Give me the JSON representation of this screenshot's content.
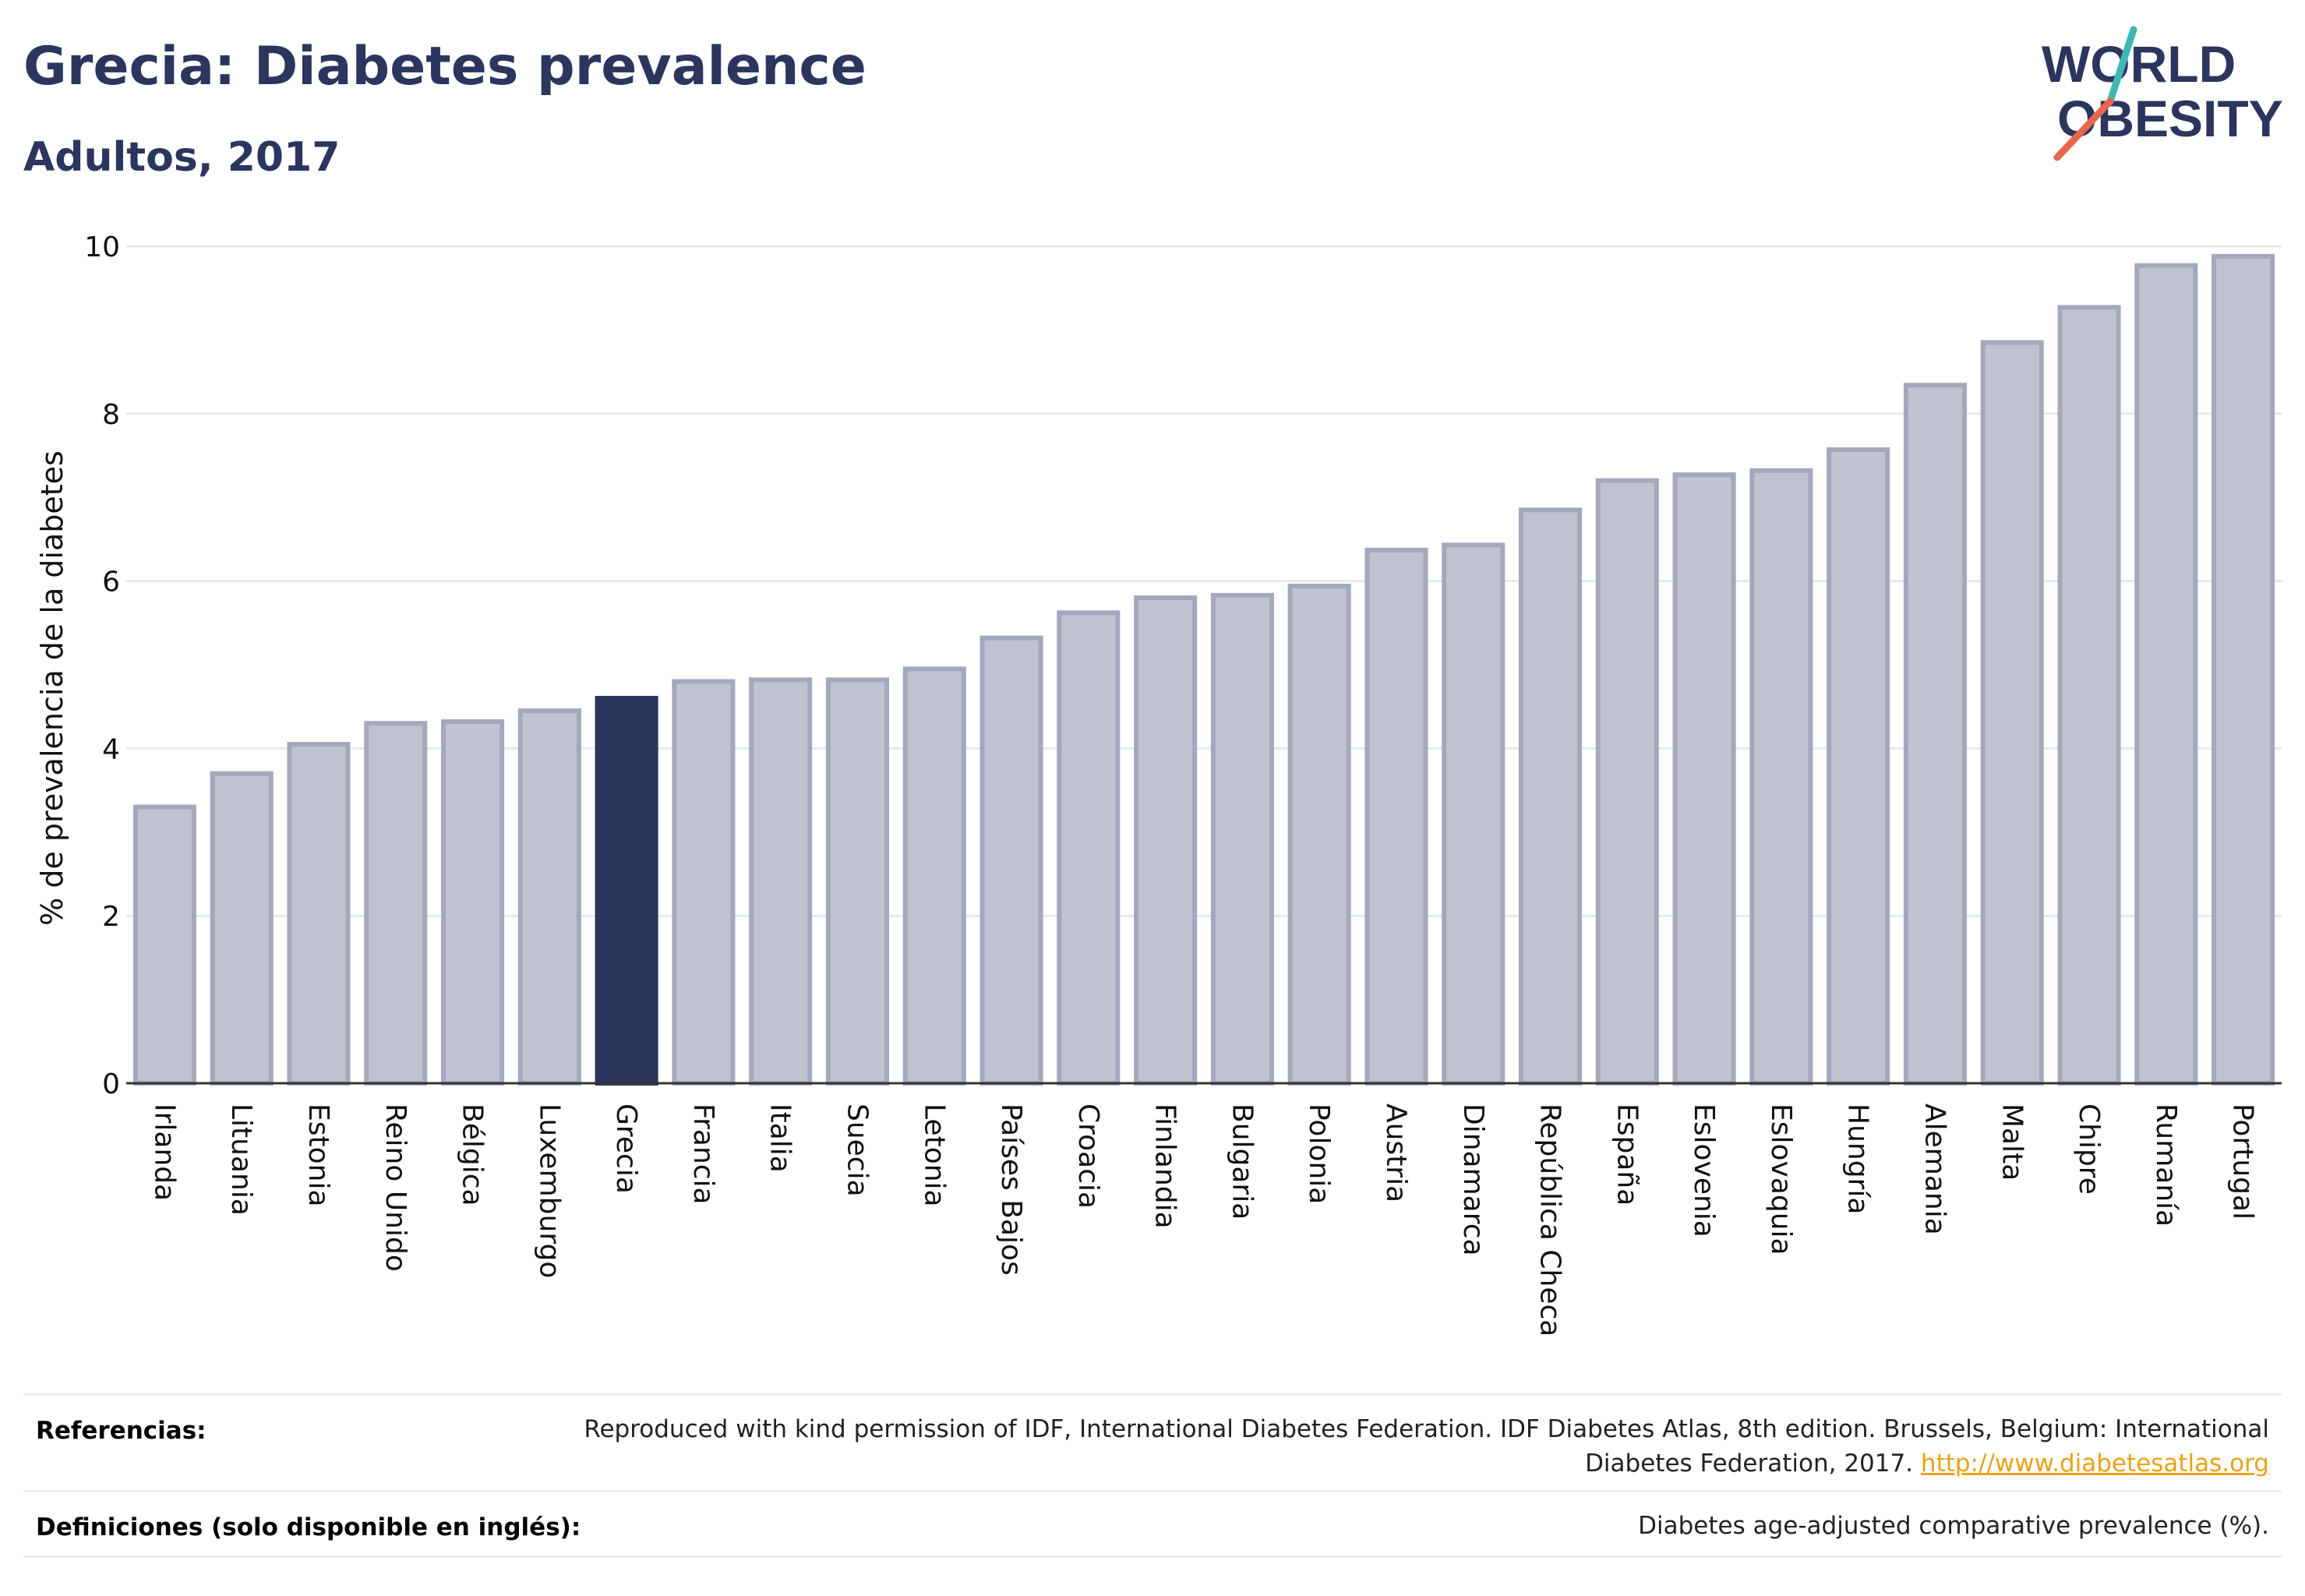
{
  "header": {
    "title": "Grecia: Diabetes prevalence",
    "subtitle": "Adultos, 2017"
  },
  "logo": {
    "line1": "WORLD",
    "line2": "OBESITY",
    "colors": {
      "text": "#2b355e",
      "accent_teal": "#3fb8b4",
      "accent_red": "#e8664e"
    }
  },
  "chart_data": {
    "type": "bar",
    "title": "Grecia: Diabetes prevalence",
    "subtitle": "Adultos, 2017",
    "ylabel": "% de prevalencia de la diabetes",
    "xlabel": "",
    "ylim": [
      0,
      10
    ],
    "yticks": [
      0,
      2,
      4,
      6,
      8,
      10
    ],
    "grid": true,
    "highlight": "Grecia",
    "colors": {
      "bar": "#c0c3cf",
      "bar_border": "#a3a8bd",
      "highlight": "#2b355e",
      "grid": "#e6e8ee"
    },
    "categories": [
      "Irlanda",
      "Lituania",
      "Estonia",
      "Reino Unido",
      "Bélgica",
      "Luxemburgo",
      "Grecia",
      "Francia",
      "Italia",
      "Suecia",
      "Letonia",
      "Países Bajos",
      "Croacia",
      "Finlandia",
      "Bulgaria",
      "Polonia",
      "Austria",
      "Dinamarca",
      "República Checa",
      "España",
      "Eslovenia",
      "Eslovaquia",
      "Hungría",
      "Alemania",
      "Malta",
      "Chipre",
      "Rumanía",
      "Portugal"
    ],
    "values": [
      3.3,
      3.7,
      4.05,
      4.3,
      4.32,
      4.45,
      4.6,
      4.8,
      4.82,
      4.82,
      4.95,
      5.32,
      5.62,
      5.8,
      5.83,
      5.94,
      6.37,
      6.43,
      6.85,
      7.2,
      7.27,
      7.32,
      7.57,
      8.34,
      8.85,
      9.27,
      9.77,
      9.88
    ]
  },
  "footer": {
    "references_label": "Referencias:",
    "references_text": "Reproduced with kind permission of IDF, International Diabetes Federation. IDF Diabetes Atlas, 8th edition. Brussels, Belgium: International Diabetes Federation, 2017.",
    "references_link": "http://www.diabetesatlas.org",
    "definitions_label": "Definiciones (solo disponible en inglés):",
    "definitions_text": "Diabetes age-adjusted comparative prevalence (%)."
  }
}
